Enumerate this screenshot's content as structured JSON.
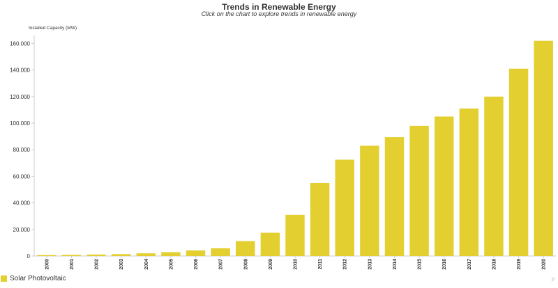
{
  "header": {
    "title": "Trends in Renewable Energy",
    "subtitle": "Click on the chart to explore trends in renewable energy"
  },
  "corner_mark": "p",
  "chart_data": {
    "type": "bar",
    "ylabel": "Installed Capacity (MW)",
    "xlabel": "",
    "categories": [
      "2000",
      "2001",
      "2002",
      "2003",
      "2004",
      "2005",
      "2006",
      "2007",
      "2008",
      "2009",
      "2010",
      "2011",
      "2012",
      "2013",
      "2014",
      "2015",
      "2016",
      "2017",
      "2018",
      "2019",
      "2020"
    ],
    "series": [
      {
        "name": "Solar Photovoltaic",
        "color": "#E3CF2F",
        "values": [
          700,
          850,
          1100,
          1400,
          2000,
          2900,
          4200,
          5800,
          11200,
          17500,
          31000,
          55000,
          72500,
          83000,
          89500,
          98000,
          105000,
          111000,
          120000,
          141000,
          162000
        ]
      }
    ],
    "yticks": [
      0,
      20000,
      40000,
      60000,
      80000,
      100000,
      120000,
      140000,
      160000
    ],
    "ytick_labels": [
      "0",
      "20.000",
      "40.000",
      "60.000",
      "80.000",
      "100.000",
      "120.000",
      "140.000",
      "160.000"
    ],
    "ylim": [
      0,
      166000
    ],
    "grid": false,
    "legend_position": "bottom-left"
  }
}
